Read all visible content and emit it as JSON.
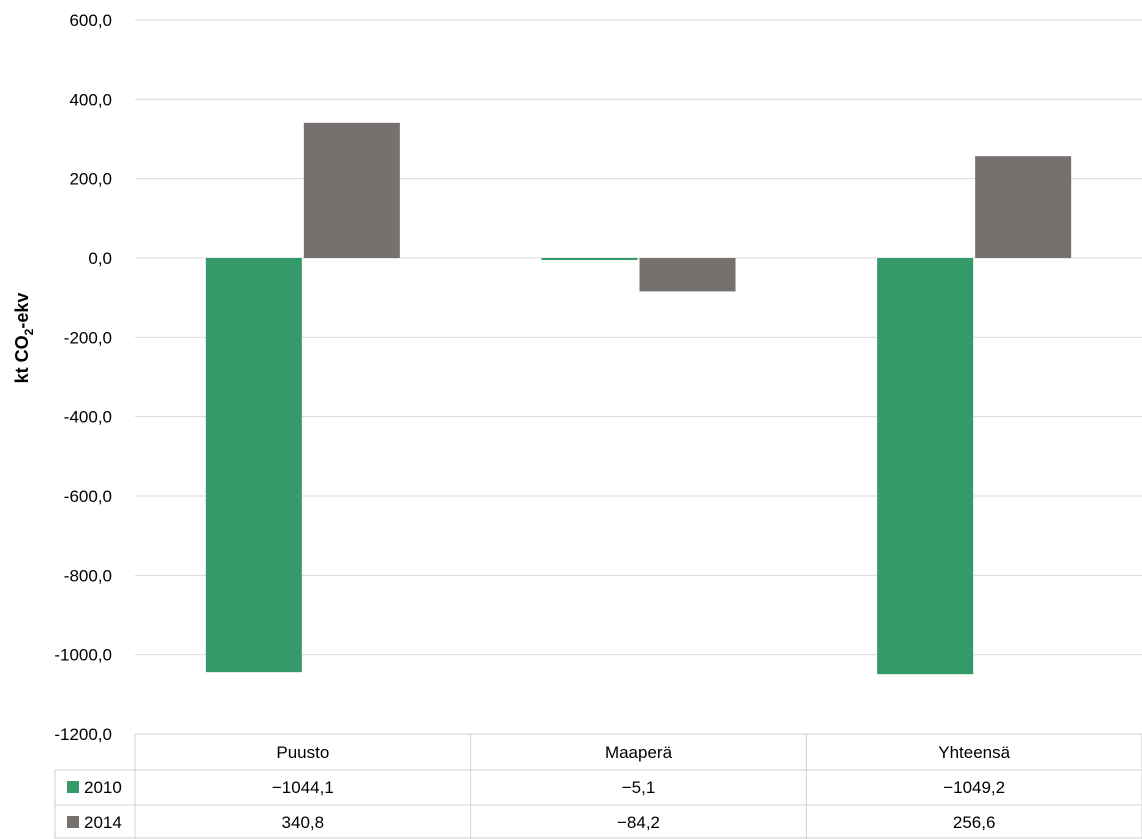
{
  "chart_data": {
    "type": "bar",
    "categories": [
      "Puusto",
      "Maaperä",
      "Yhteensä"
    ],
    "series": [
      {
        "name": "2010",
        "values": [
          -1044.1,
          -5.1,
          -1049.2
        ],
        "labels": [
          "−1044,1",
          "−5,1",
          "−1049,2"
        ],
        "color": "#349a69"
      },
      {
        "name": "2014",
        "values": [
          340.8,
          -84.2,
          256.6
        ],
        "labels": [
          "340,8",
          "−84,2",
          "256,6"
        ],
        "color": "#76716e"
      }
    ],
    "ylabel_main": "kt CO",
    "ylabel_sub": "2",
    "ylabel_tail": "-ekv",
    "ylim": [
      -1200,
      600
    ],
    "yticks": [
      600,
      400,
      200,
      0,
      -200,
      -400,
      -600,
      -800,
      -1000,
      -1200
    ],
    "ytick_labels": [
      "600,0",
      "400,0",
      "200,0",
      "0,0",
      "-200,0",
      "-400,0",
      "-600,0",
      "-800,0",
      "-1000,0",
      "-1200,0"
    ],
    "grid": true,
    "legend": "data-table"
  }
}
